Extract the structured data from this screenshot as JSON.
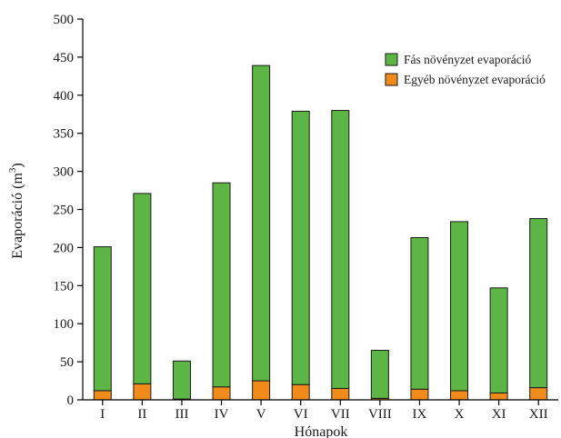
{
  "chart_data": {
    "type": "bar",
    "stacked": true,
    "categories": [
      "I",
      "II",
      "III",
      "IV",
      "V",
      "VI",
      "VII",
      "VIII",
      "IX",
      "X",
      "XI",
      "XII"
    ],
    "series": [
      {
        "name": "Egyéb növényzet evaporáció",
        "color": "#f08a1a",
        "values": [
          12,
          21,
          1,
          17,
          25,
          20,
          15,
          2,
          14,
          12,
          9,
          16
        ]
      },
      {
        "name": "Fás növényzet evaporáció",
        "color": "#5cb544",
        "values": [
          189,
          250,
          50,
          268,
          414,
          359,
          365,
          63,
          199,
          222,
          138,
          222
        ]
      }
    ],
    "xlabel": "Hónapok",
    "ylabel": "Evaporáció (m",
    "ylabel_superscript": "3",
    "ylabel_suffix": ")",
    "ylim": [
      0,
      500
    ],
    "yticks": [
      0,
      50,
      100,
      150,
      200,
      250,
      300,
      350,
      400,
      450,
      500
    ],
    "legend_position": "top-right",
    "grid": false
  }
}
